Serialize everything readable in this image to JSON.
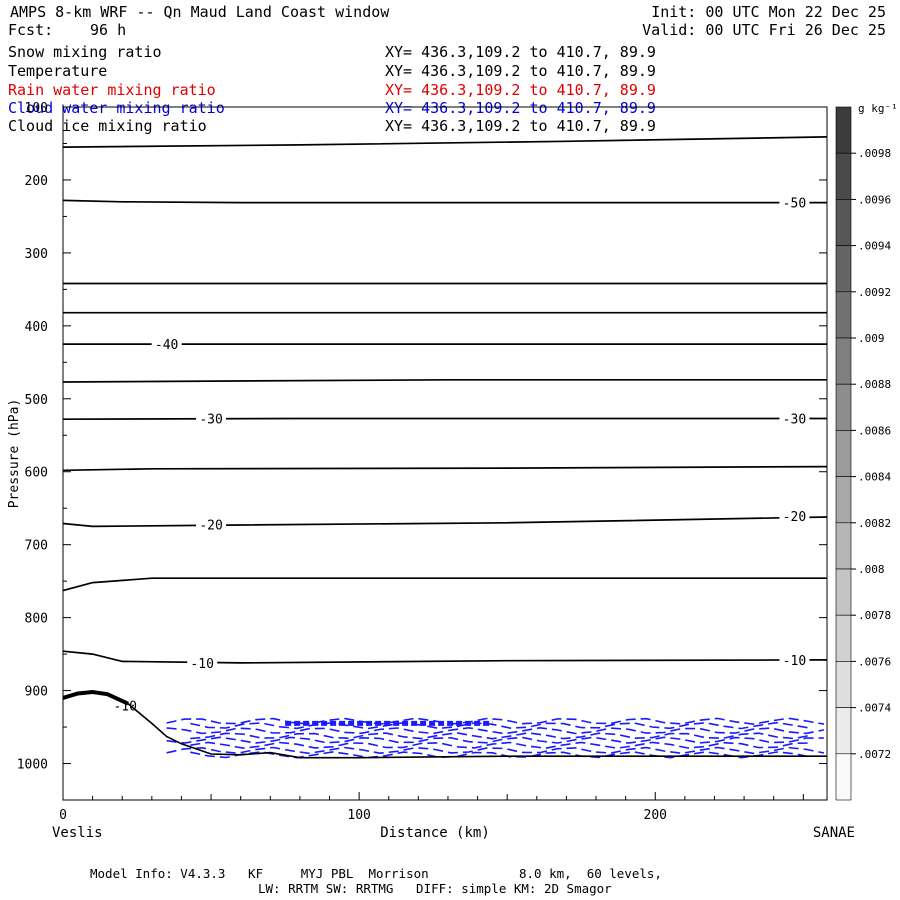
{
  "header": {
    "title": "AMPS 8-km WRF -- Qn Maud Land Coast window",
    "forecast_label": "Fcst:",
    "forecast_value": "96 h",
    "init": "Init: 00 UTC Mon 22 Dec 25",
    "valid": "Valid: 00 UTC Fri 26 Dec 25"
  },
  "variables": [
    {
      "name": "Snow mixing ratio",
      "xy": "XY= 436.3,109.2 to 410.7, 89.9",
      "color": "#000000"
    },
    {
      "name": "Temperature",
      "xy": "XY= 436.3,109.2 to 410.7, 89.9",
      "color": "#000000"
    },
    {
      "name": "Rain water mixing ratio",
      "xy": "XY= 436.3,109.2 to 410.7, 89.9",
      "color": "#e00000"
    },
    {
      "name": "Cloud water mixing ratio",
      "xy": "XY= 436.3,109.2 to 410.7, 89.9",
      "color": "#0000dd"
    },
    {
      "name": "Cloud ice mixing ratio",
      "xy": "XY= 436.3,109.2 to 410.7, 89.9",
      "color": "#000000"
    }
  ],
  "chart_data": {
    "type": "cross-section",
    "ylabel": "Pressure (hPa)",
    "xlabel": "Distance (km)",
    "xlim": [
      0,
      258
    ],
    "ylim": [
      1050,
      100
    ],
    "x_ticks": [
      0,
      100,
      200
    ],
    "y_ticks": [
      100,
      200,
      300,
      400,
      500,
      600,
      700,
      800,
      900,
      1000
    ],
    "x_start_label": "Veslis",
    "x_end_label": "SANAE",
    "contour_color": "#000000",
    "cloud_water_color": "#1a1aff",
    "temperature_contours": [
      {
        "points": [
          [
            0,
            155
          ],
          [
            80,
            152
          ],
          [
            170,
            147
          ],
          [
            258,
            141
          ]
        ]
      },
      {
        "points": [
          [
            0,
            228
          ],
          [
            20,
            230
          ],
          [
            60,
            231
          ],
          [
            258,
            231
          ]
        ],
        "labels": [
          {
            "x": 247,
            "p": 231,
            "text": "-50"
          }
        ]
      },
      {
        "points": [
          [
            0,
            342
          ],
          [
            258,
            342
          ]
        ]
      },
      {
        "points": [
          [
            0,
            382
          ],
          [
            258,
            382
          ]
        ]
      },
      {
        "points": [
          [
            0,
            425
          ],
          [
            258,
            425
          ]
        ],
        "labels": [
          {
            "x": 35,
            "p": 425,
            "text": "-40"
          }
        ]
      },
      {
        "points": [
          [
            0,
            477
          ],
          [
            130,
            474
          ],
          [
            258,
            474
          ]
        ]
      },
      {
        "points": [
          [
            0,
            528
          ],
          [
            80,
            527
          ],
          [
            258,
            527
          ]
        ],
        "labels": [
          {
            "x": 50,
            "p": 527,
            "text": "-30"
          },
          {
            "x": 247,
            "p": 527,
            "text": "-30"
          }
        ]
      },
      {
        "points": [
          [
            0,
            598
          ],
          [
            30,
            596
          ],
          [
            150,
            595
          ],
          [
            258,
            593
          ]
        ]
      },
      {
        "points": [
          [
            0,
            671
          ],
          [
            10,
            675
          ],
          [
            60,
            673
          ],
          [
            150,
            670
          ],
          [
            258,
            662
          ]
        ],
        "labels": [
          {
            "x": 50,
            "p": 672,
            "text": "-20"
          },
          {
            "x": 247,
            "p": 661,
            "text": "-20"
          }
        ]
      },
      {
        "points": [
          [
            0,
            763
          ],
          [
            10,
            752
          ],
          [
            30,
            746
          ],
          [
            150,
            746
          ],
          [
            258,
            746
          ]
        ]
      },
      {
        "points": [
          [
            0,
            846
          ],
          [
            10,
            850
          ],
          [
            20,
            860
          ],
          [
            60,
            862
          ],
          [
            150,
            859
          ],
          [
            258,
            858
          ]
        ],
        "labels": [
          {
            "x": 47,
            "p": 862,
            "text": "-10"
          },
          {
            "x": 247,
            "p": 858,
            "text": "-10"
          }
        ]
      }
    ],
    "annotations": [
      {
        "x": 21,
        "p": 922,
        "text": "-10"
      }
    ],
    "terrain": [
      [
        0,
        910
      ],
      [
        5,
        904
      ],
      [
        10,
        902
      ],
      [
        15,
        905
      ],
      [
        22,
        918
      ],
      [
        30,
        945
      ],
      [
        35,
        963
      ],
      [
        40,
        973
      ],
      [
        50,
        987
      ],
      [
        60,
        988
      ],
      [
        70,
        985
      ],
      [
        80,
        992
      ],
      [
        100,
        992
      ],
      [
        150,
        990
      ],
      [
        200,
        990
      ],
      [
        258,
        990
      ]
    ],
    "cloud_water": {
      "x_range": [
        35,
        258
      ],
      "p_range": [
        940,
        990
      ]
    },
    "colorbar": {
      "unit": "g kg⁻¹",
      "labels": [
        ".0098",
        ".0096",
        ".0094",
        ".0092",
        ".009",
        ".0088",
        ".0086",
        ".0084",
        ".0082",
        ".008",
        ".0078",
        ".0076",
        ".0074",
        ".0072"
      ]
    }
  },
  "footer": {
    "line1": "Model Info: V4.3.3   KF     MYJ PBL  Morrison            8.0 km,  60 levels,",
    "line2": "LW: RRTM SW: RRTMG   DIFF: simple KM: 2D Smagor"
  }
}
